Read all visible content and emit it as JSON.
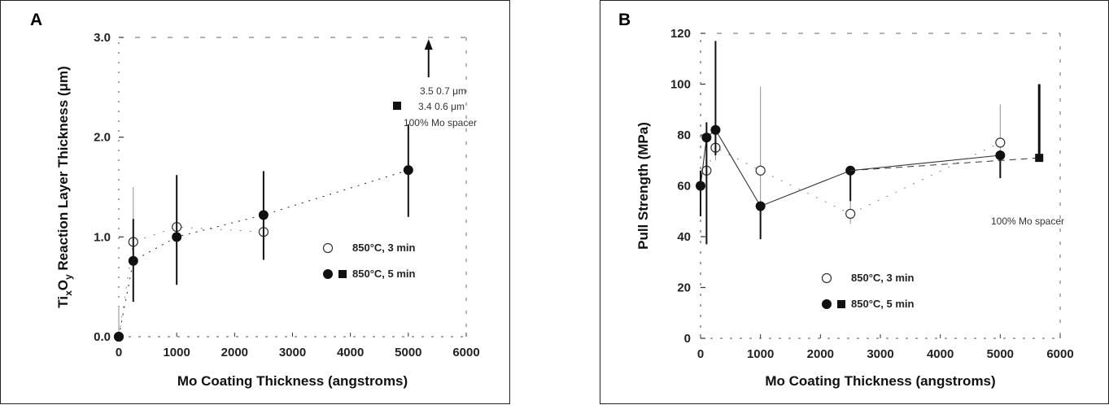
{
  "chart_data": [
    {
      "panel_label": "A",
      "type": "line",
      "xlabel": "Mo Coating Thickness (angstroms)",
      "ylabel": "TixOy Reaction Layer Thickness (μm)",
      "ylabel_parts": {
        "main": "Ti",
        "sub1": "x",
        "mid": "O",
        "sub2": "y",
        "rest": " Reaction Layer Thickness  (μm)"
      },
      "xlim": [
        0,
        6000
      ],
      "ylim": [
        0,
        3.0
      ],
      "x_ticks": [
        0,
        1000,
        2000,
        3000,
        4000,
        5000,
        6000
      ],
      "x_tick_labels": [
        "0",
        "1000",
        "2000",
        "3000",
        "4000",
        "5000",
        "6000"
      ],
      "y_ticks": [
        0,
        1.0,
        2.0,
        3.0
      ],
      "y_tick_labels": [
        "0.0",
        "1.0",
        "2.0",
        "3.0"
      ],
      "series": [
        {
          "name": "850°C, 3 min",
          "marker": "open-circle",
          "points": [
            {
              "x": 0,
              "y": 0,
              "err_low": 0,
              "err_high": 0.3
            },
            {
              "x": 250,
              "y": 0.95,
              "err_low": 0.55,
              "err_high": 1.5
            },
            {
              "x": 1000,
              "y": 1.1,
              "err_low": 0.7,
              "err_high": 1.5
            },
            {
              "x": 2500,
              "y": 1.05,
              "err_low": 0.8,
              "err_high": 1.3
            }
          ]
        },
        {
          "name": "850°C, 5 min",
          "marker": "filled-circle",
          "points": [
            {
              "x": 0,
              "y": 0,
              "err_low": 0,
              "err_high": 0
            },
            {
              "x": 250,
              "y": 0.76,
              "err_low": 0.35,
              "err_high": 1.18
            },
            {
              "x": 1000,
              "y": 1.0,
              "err_low": 0.52,
              "err_high": 1.62
            },
            {
              "x": 2500,
              "y": 1.22,
              "err_low": 0.77,
              "err_high": 1.66
            },
            {
              "x": 5000,
              "y": 1.67,
              "err_low": 1.2,
              "err_high": 2.13
            }
          ]
        }
      ],
      "off_scale": {
        "x": 5350,
        "arrow_y_start": 2.6,
        "arrow_y_end": 2.95
      },
      "annotations": [
        "3.5 0.7 μm",
        "3.4 0.6 μm",
        "100% Mo spacer"
      ],
      "legend": [
        {
          "symbols": [
            "open-circle"
          ],
          "label": "850°C, 3 min"
        },
        {
          "symbols": [
            "filled-circle",
            "filled-square"
          ],
          "label": "850°C, 5 min"
        }
      ]
    },
    {
      "panel_label": "B",
      "type": "line",
      "xlabel": "Mo Coating Thickness (angstroms)",
      "ylabel": "Pull Strength  (MPa)",
      "xlim": [
        0,
        6000
      ],
      "ylim": [
        0,
        120
      ],
      "x_ticks": [
        0,
        1000,
        2000,
        3000,
        4000,
        5000,
        6000
      ],
      "x_tick_labels": [
        "0",
        "1000",
        "2000",
        "3000",
        "4000",
        "5000",
        "6000"
      ],
      "y_ticks": [
        0,
        20,
        40,
        60,
        80,
        100,
        120
      ],
      "y_tick_labels": [
        "0",
        "20",
        "40",
        "60",
        "80",
        "100",
        "120"
      ],
      "series": [
        {
          "name": "850°C, 3 min",
          "marker": "open-circle",
          "points": [
            {
              "x": 100,
              "y": 66,
              "err_low": 55,
              "err_high": 75
            },
            {
              "x": 250,
              "y": 75,
              "err_low": 70,
              "err_high": 80
            },
            {
              "x": 1000,
              "y": 66,
              "err_low": 52,
              "err_high": 99
            },
            {
              "x": 2500,
              "y": 49,
              "err_low": 45,
              "err_high": 55
            },
            {
              "x": 5000,
              "y": 77,
              "err_low": 70,
              "err_high": 92
            }
          ]
        },
        {
          "name": "850°C, 5 min",
          "marker": "filled-circle",
          "points": [
            {
              "x": 0,
              "y": 60,
              "err_low": 48,
              "err_high": 66
            },
            {
              "x": 100,
              "y": 79,
              "err_low": 37,
              "err_high": 85
            },
            {
              "x": 250,
              "y": 82,
              "err_low": 72,
              "err_high": 117
            },
            {
              "x": 1000,
              "y": 52,
              "err_low": 39,
              "err_high": 52
            },
            {
              "x": 2500,
              "y": 66,
              "err_low": 54,
              "err_high": 66
            },
            {
              "x": 5000,
              "y": 72,
              "err_low": 63,
              "err_high": 72
            }
          ]
        }
      ],
      "spacer_point": {
        "x": 5650,
        "y": 71,
        "err_low": 71,
        "err_high": 100,
        "marker": "filled-square"
      },
      "annotations": [
        "100% Mo spacer"
      ],
      "legend": [
        {
          "symbols": [
            "open-circle"
          ],
          "label": "850°C, 3 min"
        },
        {
          "symbols": [
            "filled-circle",
            "filled-square"
          ],
          "label": "850°C, 5 min"
        }
      ]
    }
  ]
}
